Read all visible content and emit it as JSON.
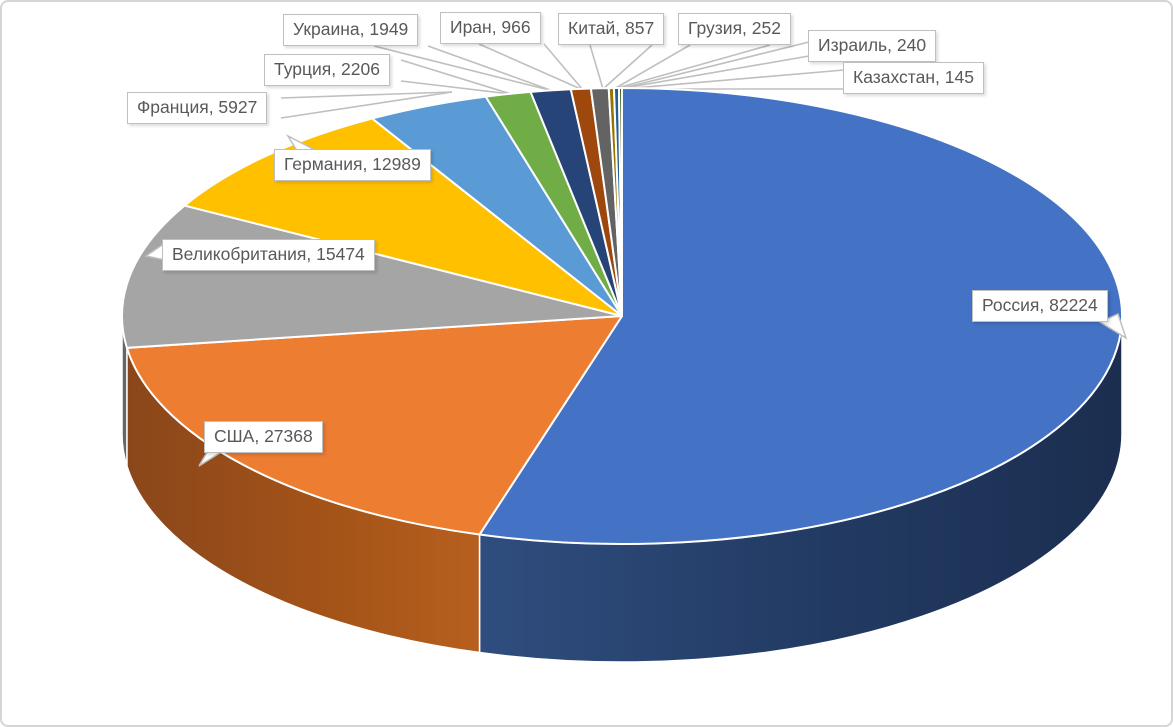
{
  "chart_data": {
    "type": "pie",
    "projection": "3d",
    "title": "",
    "legend_position": "none",
    "data_label_style": "outside callout: category, value",
    "start_angle_deg": 0,
    "direction": "clockwise",
    "categories": [
      "Россия",
      "США",
      "Великобритания",
      "Германия",
      "Франция",
      "Турция",
      "Украина",
      "Иран",
      "Китай",
      "Грузия",
      "Израиль",
      "Казахстан"
    ],
    "values": [
      82224,
      27368,
      15474,
      12989,
      5927,
      2206,
      1949,
      966,
      857,
      252,
      240,
      145
    ],
    "labels": [
      "Россия, 82224",
      "США, 27368",
      "Великобритания, 15474",
      "Германия, 12989",
      "Франция, 5927",
      "Турция, 2206",
      "Украина, 1949",
      "Иран, 966",
      "Китай, 857",
      "Грузия, 252",
      "Израиль, 240",
      "Казахстан, 145"
    ],
    "colors": [
      "#4472C4",
      "#ED7D31",
      "#A5A5A5",
      "#FFC000",
      "#5B9BD5",
      "#70AD47",
      "#264478",
      "#9E480E",
      "#636363",
      "#997300",
      "#255E91",
      "#43682B"
    ],
    "slice_border_color": "#FFFFFF",
    "leader_line_color": "#BFBFBF",
    "callout_style": {
      "fill": "#FFFFFF",
      "border_color": "#BFBFBF",
      "text_color": "#595959"
    },
    "background_color": "#FFFFFF",
    "canvas_border_color": "#D5D5D5"
  }
}
